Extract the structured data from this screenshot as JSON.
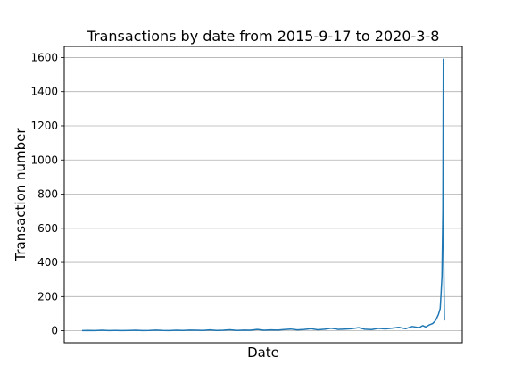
{
  "chart_data": {
    "type": "line",
    "title": "Transactions by date from 2015-9-17 to 2020-3-8",
    "xlabel": "Date",
    "ylabel": "Transaction number",
    "x_start": "2015-09-17",
    "x_end": "2020-03-08",
    "ylim": [
      -70,
      1665
    ],
    "yticks": [
      "0",
      "200",
      "400",
      "600",
      "800",
      "1000",
      "1200",
      "1400",
      "1600"
    ],
    "grid": "horizontal",
    "line_color": "#1f77b4",
    "series": [
      {
        "x": [
          "2015-09-17",
          "2015-10-15",
          "2015-11-15",
          "2015-12-15",
          "2016-01-15",
          "2016-02-15",
          "2016-03-15",
          "2016-04-15",
          "2016-05-15",
          "2016-06-15",
          "2016-07-15",
          "2016-08-15",
          "2016-09-15",
          "2016-10-15",
          "2016-11-15",
          "2016-12-15",
          "2017-01-15",
          "2017-02-15",
          "2017-03-15",
          "2017-04-15",
          "2017-05-15",
          "2017-06-15",
          "2017-07-15",
          "2017-08-15",
          "2017-09-15",
          "2017-10-15",
          "2017-11-15",
          "2017-12-15",
          "2018-01-15",
          "2018-02-15",
          "2018-03-15",
          "2018-04-15",
          "2018-05-15",
          "2018-06-15",
          "2018-07-15",
          "2018-08-15",
          "2018-09-15",
          "2018-10-15",
          "2018-11-15",
          "2018-12-15",
          "2019-01-15",
          "2019-02-15",
          "2019-03-15",
          "2019-04-15",
          "2019-05-15",
          "2019-06-15",
          "2019-07-15",
          "2019-08-15",
          "2019-09-15",
          "2019-10-15",
          "2019-11-15",
          "2019-12-01",
          "2019-12-15",
          "2020-01-01",
          "2020-01-15",
          "2020-01-25",
          "2020-02-01",
          "2020-02-10",
          "2020-02-18",
          "2020-02-22",
          "2020-02-26",
          "2020-03-01",
          "2020-03-03",
          "2020-03-05",
          "2020-03-08"
        ],
        "values": [
          1,
          2,
          1,
          3,
          1,
          2,
          1,
          2,
          3,
          1,
          2,
          4,
          2,
          1,
          3,
          2,
          4,
          3,
          2,
          5,
          2,
          3,
          6,
          2,
          4,
          3,
          8,
          3,
          5,
          4,
          7,
          10,
          5,
          8,
          12,
          6,
          9,
          15,
          8,
          10,
          12,
          18,
          9,
          7,
          14,
          11,
          15,
          20,
          12,
          25,
          18,
          30,
          22,
          35,
          42,
          55,
          70,
          95,
          130,
          220,
          320,
          700,
          1590,
          400,
          60
        ]
      }
    ]
  }
}
